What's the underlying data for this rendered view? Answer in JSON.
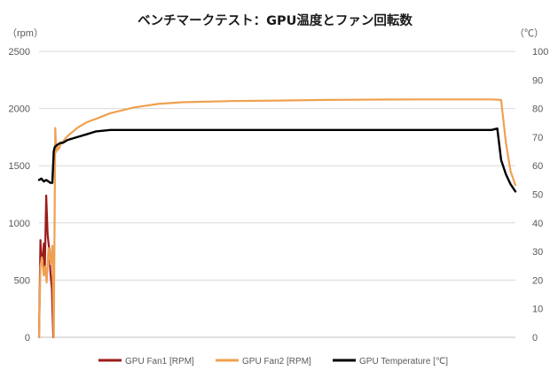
{
  "chart_data": {
    "type": "line",
    "title": "ベンチマークテスト：GPU温度とファン回転数",
    "y_left_unit": "（rpm）",
    "y_right_unit": "（℃）",
    "y_left_range": [
      0,
      2500
    ],
    "y_left_ticks": [
      "0",
      "500",
      "1000",
      "1500",
      "2000",
      "2500"
    ],
    "y_right_range": [
      0,
      100
    ],
    "y_right_ticks": [
      "0",
      "10",
      "20",
      "30",
      "40",
      "50",
      "60",
      "70",
      "80",
      "90",
      "100"
    ],
    "x_range": [
      0,
      100
    ],
    "grid": "horizontal",
    "legend_position": "bottom",
    "series": [
      {
        "name": "GPU Fan1 [RPM]",
        "color": "#9b1b1b",
        "axis": "left",
        "x": [
          0,
          0.3,
          0.5,
          0.8,
          1.0,
          1.2,
          1.5,
          1.8,
          2.1,
          2.4,
          2.7,
          3.0
        ],
        "y": [
          0,
          850,
          640,
          710,
          820,
          550,
          1240,
          900,
          780,
          560,
          420,
          0
        ]
      },
      {
        "name": "GPU Fan2 [RPM]",
        "color": "#f0a050",
        "axis": "left",
        "x": [
          0,
          0.3,
          0.6,
          1.0,
          1.3,
          1.6,
          2.0,
          2.4,
          2.8,
          3.1,
          3.4,
          3.6,
          3.8,
          4.0,
          4.3,
          4.6,
          5,
          6,
          8,
          10,
          12,
          15,
          20,
          25,
          30,
          40,
          50,
          60,
          70,
          80,
          90,
          95,
          97,
          98,
          99,
          100
        ],
        "y": [
          0,
          620,
          700,
          540,
          620,
          480,
          780,
          640,
          800,
          0,
          1830,
          1620,
          1670,
          1640,
          1660,
          1700,
          1710,
          1760,
          1830,
          1880,
          1910,
          1960,
          2010,
          2040,
          2055,
          2065,
          2070,
          2075,
          2078,
          2080,
          2080,
          2080,
          2075,
          1700,
          1450,
          1330
        ]
      },
      {
        "name": "GPU Temperature [℃]",
        "color": "#000000",
        "axis": "right",
        "x": [
          0,
          0.5,
          1.0,
          1.5,
          2.0,
          2.4,
          2.8,
          3.1,
          3.3,
          3.6,
          4.0,
          4.5,
          5,
          6,
          8,
          10,
          12,
          15,
          20,
          25,
          30,
          40,
          50,
          60,
          70,
          80,
          90,
          95,
          96.2,
          97,
          98,
          99,
          100
        ],
        "y": [
          55,
          55.5,
          54.5,
          55,
          54.5,
          54,
          54,
          65,
          66.5,
          67,
          67.5,
          68,
          68,
          69,
          70,
          71,
          72,
          72.5,
          72.5,
          72.5,
          72.5,
          72.5,
          72.5,
          72.5,
          72.5,
          72.5,
          72.5,
          72.5,
          73,
          62,
          57,
          53.5,
          51
        ]
      }
    ]
  }
}
